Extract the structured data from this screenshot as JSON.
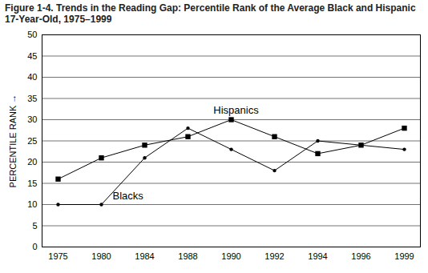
{
  "chart_data": {
    "type": "line",
    "title": "Figure 1-4. Trends in the Reading Gap: Percentile Rank of the Average Black and Hispanic 17-Year-Old, 1975–1999",
    "y_label": "PERCENTILE RANK",
    "categories": [
      "1975",
      "1980",
      "1984",
      "1988",
      "1990",
      "1992",
      "1994",
      "1996",
      "1999"
    ],
    "series": [
      {
        "name": "Hispanics",
        "color": "#000000",
        "marker": "square",
        "line_style": "solid",
        "values": [
          16,
          21,
          24,
          26,
          30,
          26,
          22,
          24,
          28
        ]
      },
      {
        "name": "Blacks",
        "color": "#000000",
        "marker": "circle",
        "line_style": "solid",
        "values": [
          10,
          10,
          21,
          28,
          23,
          18,
          25,
          24,
          23
        ]
      }
    ],
    "ylim": [
      0,
      50
    ],
    "yticks": [
      0,
      5,
      10,
      15,
      20,
      25,
      30,
      35,
      40,
      45,
      50
    ],
    "grid": true
  }
}
